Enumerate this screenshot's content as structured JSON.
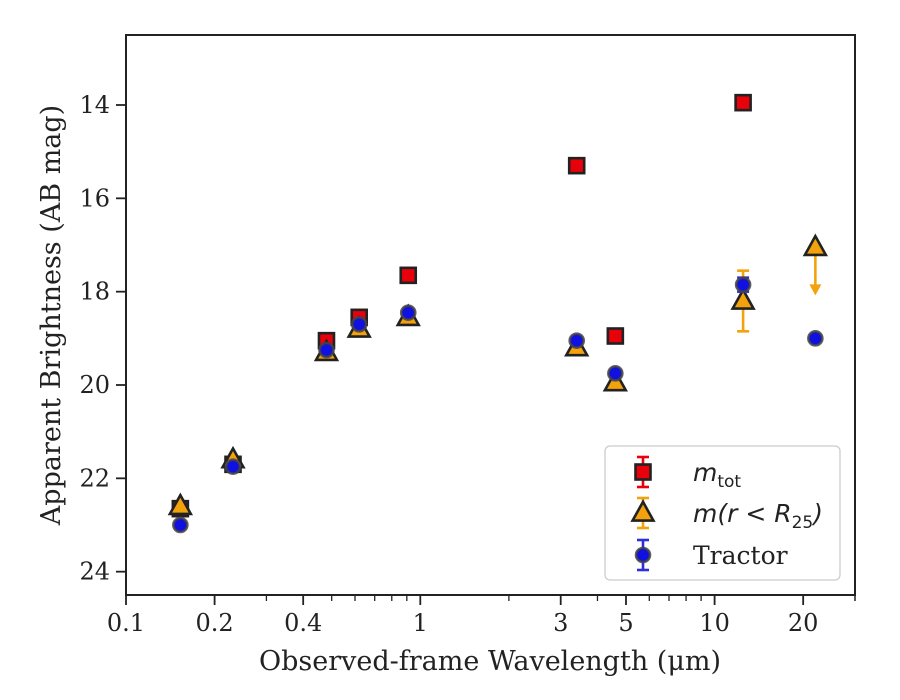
{
  "chart_data": {
    "type": "scatter",
    "xscale": "log",
    "yaxis_inverted": true,
    "xlim": [
      0.1,
      30
    ],
    "ylim": [
      24.5,
      12.5
    ],
    "xticks": [
      {
        "value": 0.1,
        "label": "0.1"
      },
      {
        "value": 0.2,
        "label": "0.2"
      },
      {
        "value": 0.4,
        "label": "0.4"
      },
      {
        "value": 1,
        "label": "1"
      },
      {
        "value": 3,
        "label": "3"
      },
      {
        "value": 5,
        "label": "5"
      },
      {
        "value": 10,
        "label": "10"
      },
      {
        "value": 20,
        "label": "20"
      }
    ],
    "yticks": [
      {
        "value": 14,
        "label": "14"
      },
      {
        "value": 16,
        "label": "16"
      },
      {
        "value": 18,
        "label": "18"
      },
      {
        "value": 20,
        "label": "20"
      },
      {
        "value": 22,
        "label": "22"
      },
      {
        "value": 24,
        "label": "24"
      }
    ],
    "xlabel": "Observed-frame Wavelength (μm)",
    "ylabel": "Apparent Brightness (AB mag)",
    "legend_position": "lower-right",
    "series": [
      {
        "name": "m_tot",
        "legend_main": "m",
        "legend_sub": "tot",
        "marker": "square",
        "face_color": "#e8000b",
        "edge_color": "#222222",
        "error_color": "#e8000b",
        "points": [
          {
            "x": 0.153,
            "y": 22.65
          },
          {
            "x": 0.231,
            "y": 21.7
          },
          {
            "x": 0.48,
            "y": 19.05
          },
          {
            "x": 0.62,
            "y": 18.55
          },
          {
            "x": 0.91,
            "y": 17.65
          },
          {
            "x": 3.4,
            "y": 15.3
          },
          {
            "x": 4.6,
            "y": 18.95
          },
          {
            "x": 12.5,
            "y": 13.95
          }
        ]
      },
      {
        "name": "m(r < R25)",
        "legend_main": "m(r < R",
        "legend_sub": "25",
        "legend_tail": ")",
        "marker": "triangle",
        "face_color": "#f2a20c",
        "edge_color": "#222222",
        "error_color": "#f2a20c",
        "points": [
          {
            "x": 0.153,
            "y": 22.6
          },
          {
            "x": 0.231,
            "y": 21.6
          },
          {
            "x": 0.48,
            "y": 19.3
          },
          {
            "x": 0.62,
            "y": 18.8
          },
          {
            "x": 0.91,
            "y": 18.55
          },
          {
            "x": 3.4,
            "y": 19.2
          },
          {
            "x": 4.6,
            "y": 19.95
          },
          {
            "x": 12.5,
            "y": 18.2,
            "yerr": 0.65
          },
          {
            "x": 22,
            "y": 17.05,
            "upper_limit": true
          }
        ]
      },
      {
        "name": "Tractor",
        "legend_main": "Tractor",
        "marker": "circle",
        "face_color": "#1010e0",
        "edge_color": "#444444",
        "error_color": "#2f2fd8",
        "points": [
          {
            "x": 0.153,
            "y": 23.0
          },
          {
            "x": 0.231,
            "y": 21.75
          },
          {
            "x": 0.48,
            "y": 19.25
          },
          {
            "x": 0.62,
            "y": 18.7
          },
          {
            "x": 0.91,
            "y": 18.45
          },
          {
            "x": 3.4,
            "y": 19.05
          },
          {
            "x": 4.6,
            "y": 19.75
          },
          {
            "x": 12.5,
            "y": 17.85,
            "yerr": 0.15
          },
          {
            "x": 22,
            "y": 19.0
          }
        ]
      }
    ]
  }
}
